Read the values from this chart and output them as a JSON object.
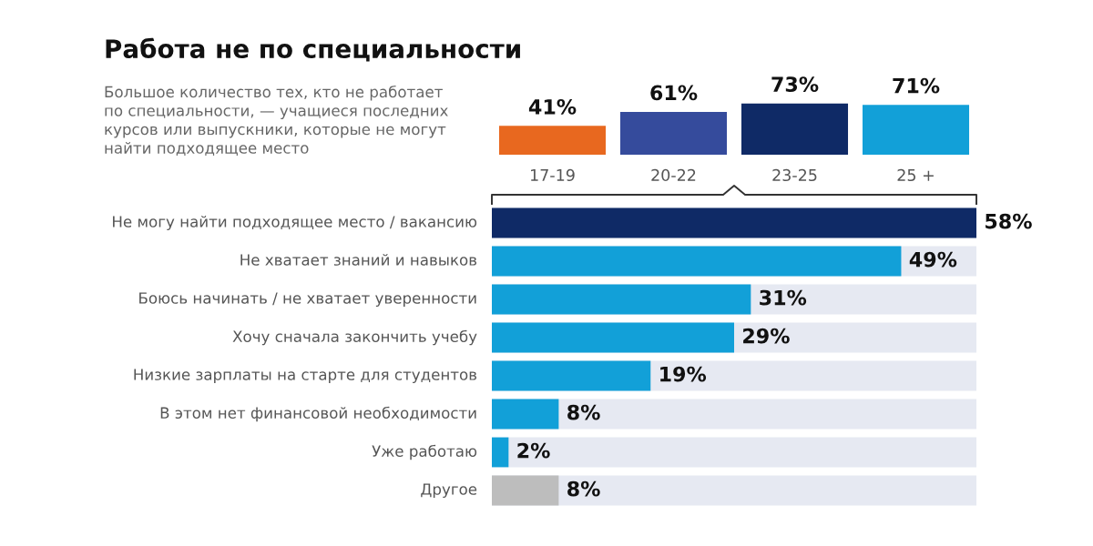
{
  "chart_data": [
    {
      "type": "bar",
      "title": "Работа не по специальности",
      "subtitle": "Большое количество тех, кто не работает\nпо специальности, — учащиеся последних\nкурсов или выпускники, которые не могут\nнайти подходящее место",
      "categories": [
        "17-19",
        "20-22",
        "23-25",
        "25 +"
      ],
      "values": [
        41,
        61,
        73,
        71
      ],
      "value_labels": [
        "41%",
        "61%",
        "73%",
        "71%"
      ],
      "colors": [
        "#e8681f",
        "#354b9c",
        "#0f2a66",
        "#12a0d8"
      ]
    },
    {
      "type": "bar",
      "orientation": "horizontal",
      "categories": [
        "Не могу найти подходящее место / вакансию",
        "Не хватает знаний и навыков",
        "Боюсь начинать / не хватает уверенности",
        "Хочу сначала закончить учебу",
        "Низкие зарплаты на старте для студентов",
        "В этом нет финансовой необходимости",
        "Уже работаю",
        "Другое"
      ],
      "values": [
        58,
        49,
        31,
        29,
        19,
        8,
        2,
        8
      ],
      "value_labels": [
        "58%",
        "49%",
        "31%",
        "29%",
        "19%",
        "8%",
        "2%",
        "8%"
      ],
      "colors": [
        "#0f2a66",
        "#12a0d8",
        "#12a0d8",
        "#12a0d8",
        "#12a0d8",
        "#12a0d8",
        "#12a0d8",
        "#bdbdbd"
      ]
    }
  ]
}
